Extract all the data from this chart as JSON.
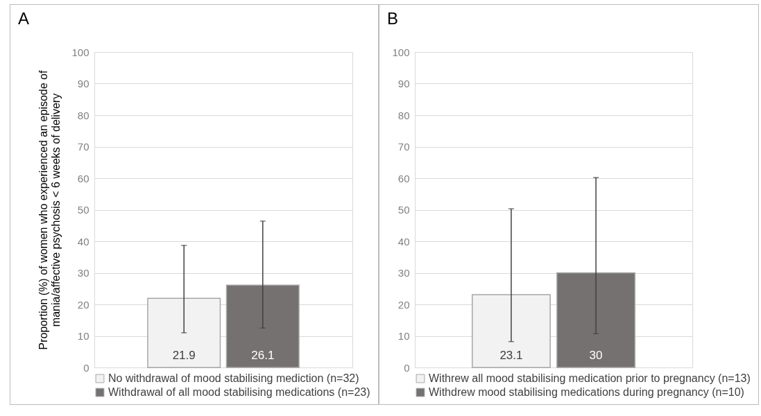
{
  "chart_data": [
    {
      "type": "bar",
      "title": "A",
      "ylabel": "Proportion (%) of women who experienced an episode of mania/affective psychosis < 6 weeks of delivery",
      "categories": [
        null
      ],
      "series": [
        {
          "name": "No withdrawal of mood stabilising mediction (n=32)",
          "color": "#f2f2f2",
          "values": [
            21.9
          ],
          "errors": [
            [
              11,
              38.7
            ]
          ]
        },
        {
          "name": "Withdrawal of all mood stabilising medications (n=23)",
          "color": "#767171",
          "values": [
            26.1
          ],
          "errors": [
            [
              12.5,
              46.4
            ]
          ]
        }
      ],
      "ylim": [
        0,
        100
      ],
      "yticks": [
        0,
        10,
        20,
        30,
        40,
        50,
        60,
        70,
        80,
        90,
        100
      ],
      "grid": "y",
      "legend": "bottom",
      "data_labels": true
    },
    {
      "type": "bar",
      "title": "B",
      "categories": [
        null
      ],
      "series": [
        {
          "name": "Withrew all mood stabilising medication prior to pregnancy (n=13)",
          "color": "#f2f2f2",
          "values": [
            23.1
          ],
          "errors": [
            [
              8.2,
              50.3
            ]
          ]
        },
        {
          "name": "Withdrew mood stabilising medications during pregnancy (n=10)",
          "color": "#767171",
          "values": [
            30
          ],
          "errors": [
            [
              10.7,
              60.2
            ]
          ]
        }
      ],
      "ylim": [
        0,
        100
      ],
      "yticks": [
        0,
        10,
        20,
        30,
        40,
        50,
        60,
        70,
        80,
        90,
        100
      ],
      "grid": "y",
      "legend": "bottom",
      "data_labels": true
    }
  ]
}
